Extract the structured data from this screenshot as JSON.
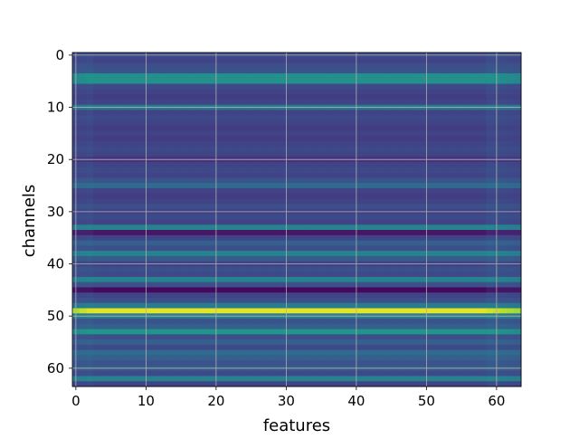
{
  "chart_data": {
    "type": "heatmap",
    "colormap": "viridis",
    "xlabel": "features",
    "ylabel": "channels",
    "xlim": [
      -0.5,
      63.5
    ],
    "ylim": [
      63.5,
      -0.5
    ],
    "xticks": [
      0,
      10,
      20,
      30,
      40,
      50,
      60
    ],
    "yticks": [
      0,
      10,
      20,
      30,
      40,
      50,
      60
    ],
    "grid": true,
    "n_cols": 64,
    "value_range": [
      0,
      1
    ],
    "row_base_values": [
      0.22,
      0.2,
      0.24,
      0.26,
      0.5,
      0.5,
      0.22,
      0.2,
      0.18,
      0.2,
      0.4,
      0.2,
      0.22,
      0.2,
      0.18,
      0.2,
      0.18,
      0.2,
      0.22,
      0.2,
      0.14,
      0.2,
      0.22,
      0.2,
      0.26,
      0.34,
      0.2,
      0.18,
      0.2,
      0.24,
      0.2,
      0.22,
      0.2,
      0.45,
      0.06,
      0.2,
      0.3,
      0.24,
      0.45,
      0.28,
      0.2,
      0.24,
      0.22,
      0.45,
      0.24,
      0.02,
      0.2,
      0.24,
      0.42,
      0.96,
      0.42,
      0.26,
      0.3,
      0.52,
      0.24,
      0.3,
      0.22,
      0.34,
      0.3,
      0.26,
      0.28,
      0.22,
      0.45,
      0.2
    ]
  }
}
